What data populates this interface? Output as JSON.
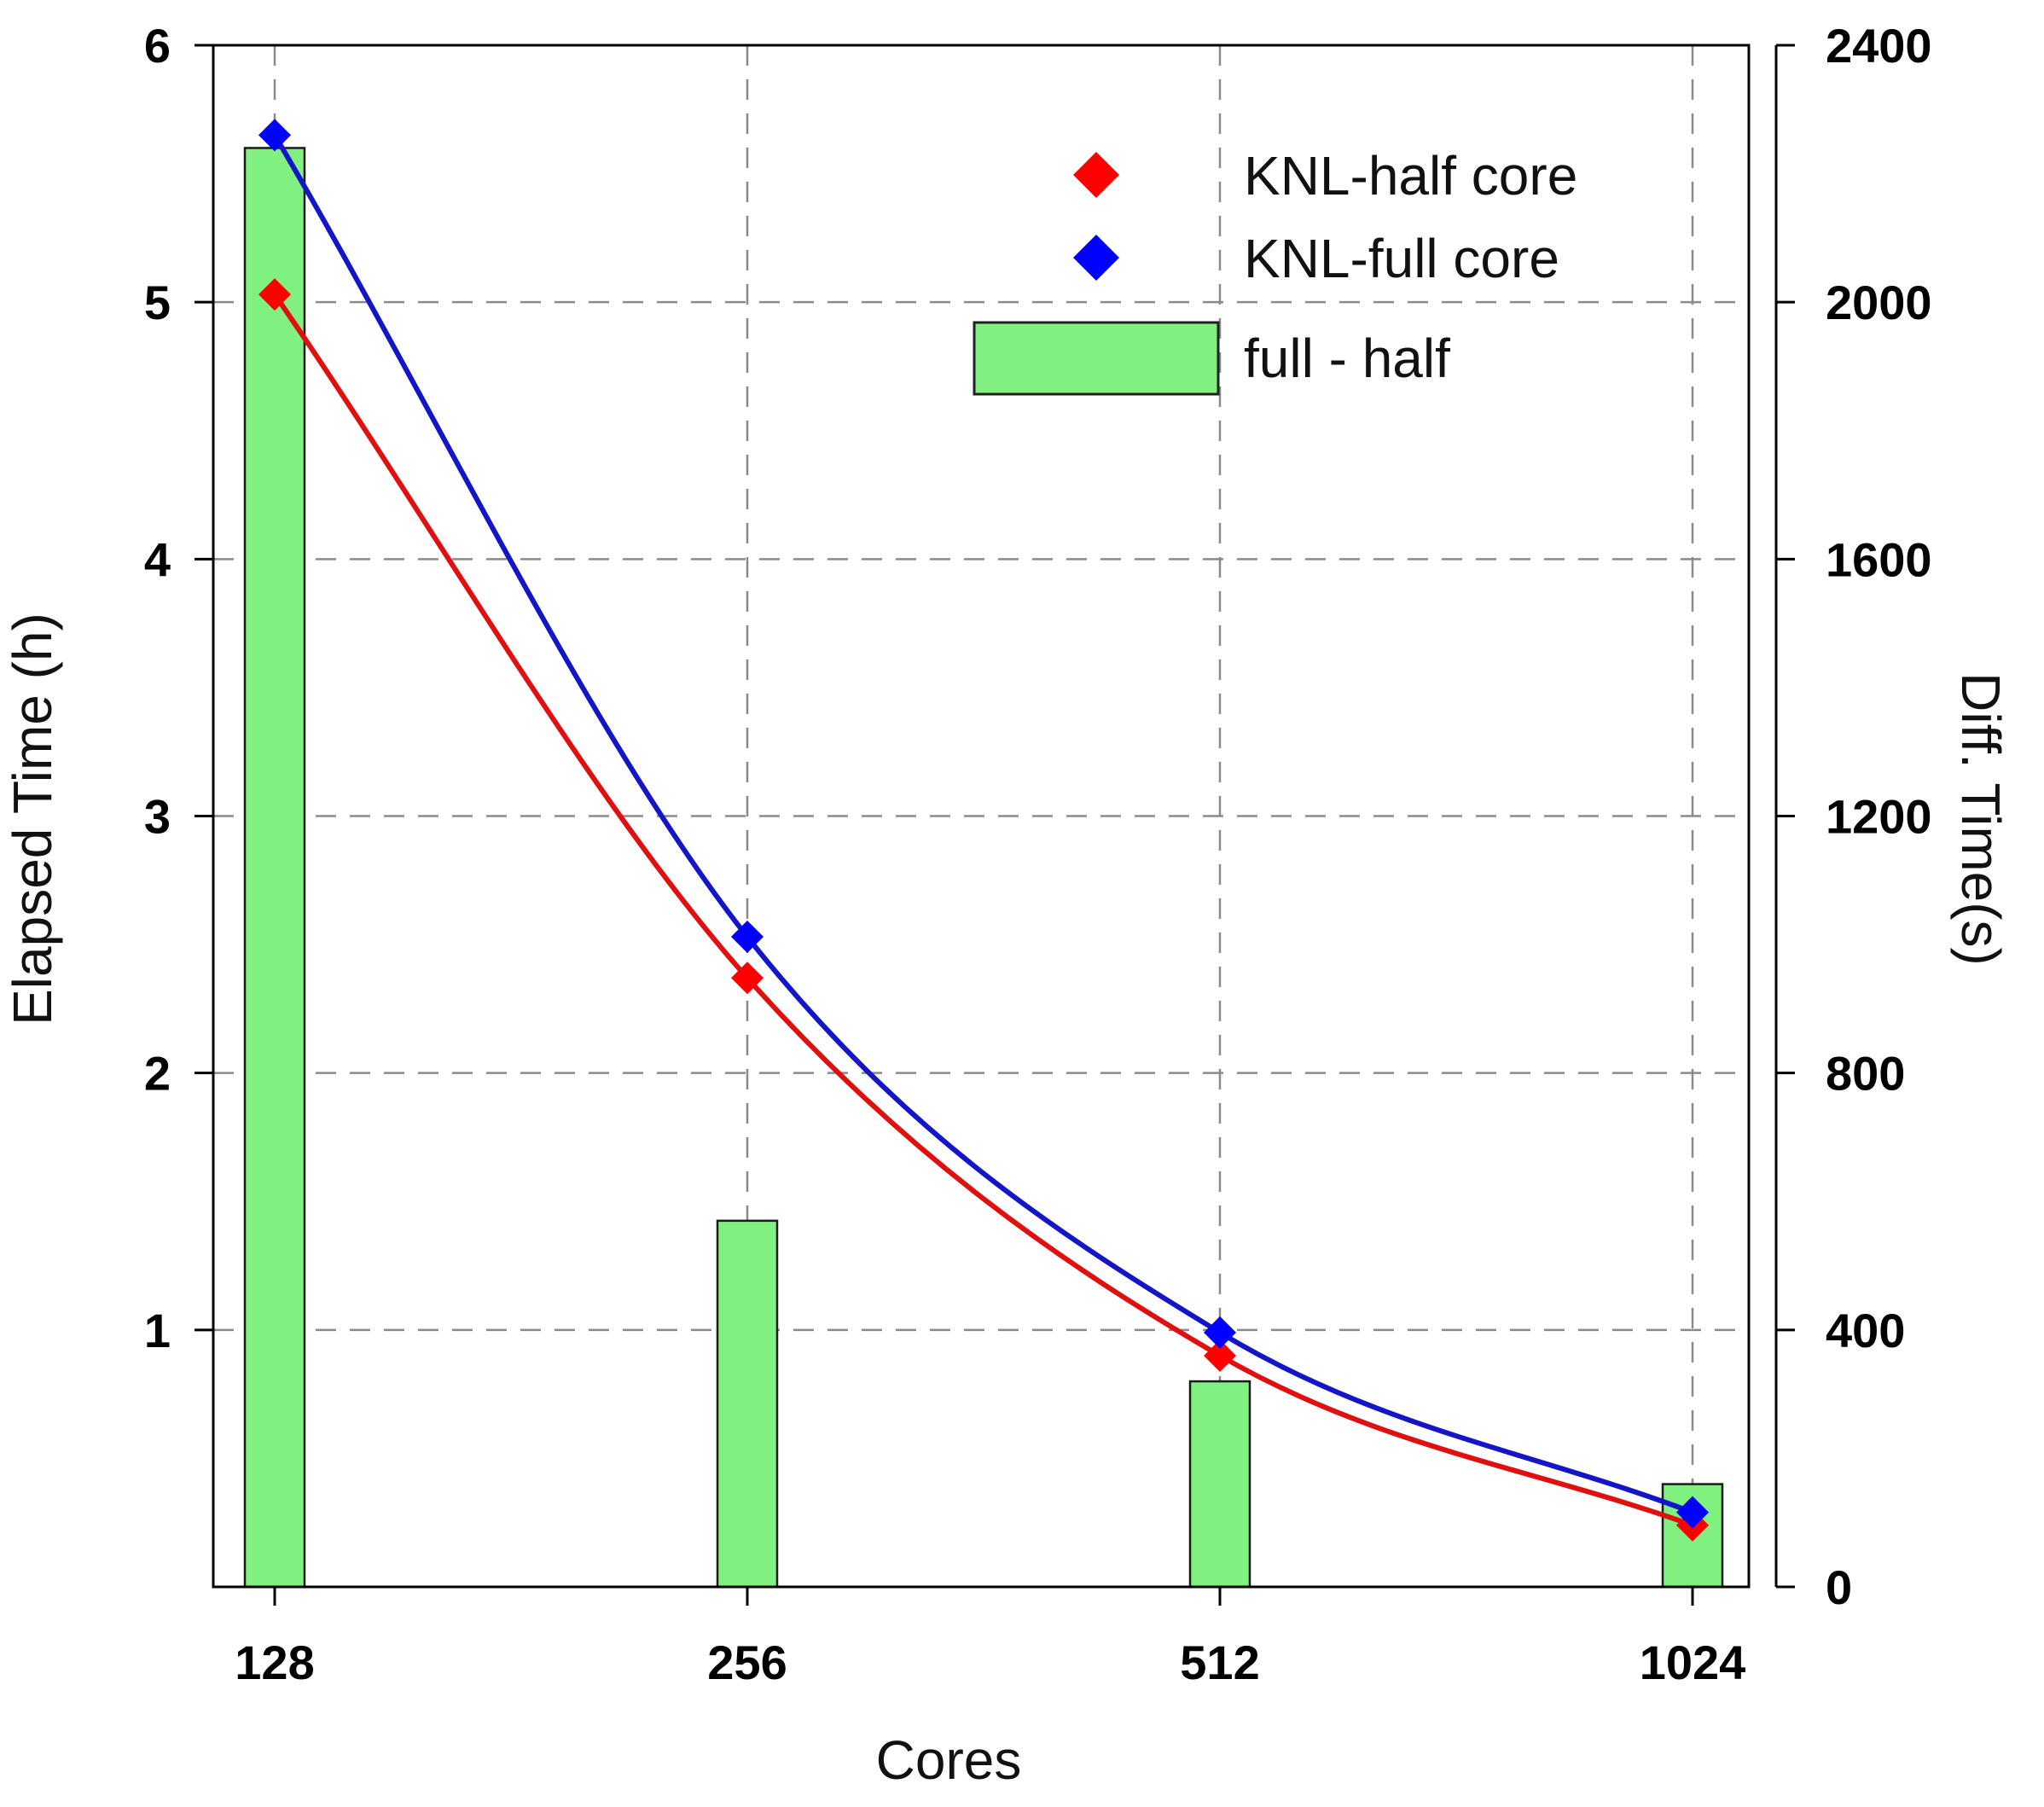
{
  "chart_data": {
    "type": "bar+line",
    "title": "",
    "xlabel": "Cores",
    "ylabel_left": "Elapsed Time (h)",
    "ylabel_right": "Diff. Time(s)",
    "x_ticks": [
      "128",
      "256",
      "512",
      "1024"
    ],
    "x_scale": "log2",
    "ylim_left": [
      0,
      6
    ],
    "yticks_left": [
      1,
      2,
      3,
      4,
      5,
      6
    ],
    "ylim_right": [
      0,
      2400
    ],
    "yticks_right": [
      0,
      400,
      800,
      1200,
      1600,
      2000,
      2400
    ],
    "grid": "dashed",
    "legend_position": "top-right",
    "series": [
      {
        "name": "KNL-half core",
        "kind": "line+markers",
        "axis": "left",
        "color": "#ff0000",
        "line_color": "#e01010",
        "x": [
          128,
          256,
          512,
          1024
        ],
        "values": [
          5.03,
          2.37,
          0.9,
          0.24
        ]
      },
      {
        "name": "KNL-full core",
        "kind": "line+markers",
        "axis": "left",
        "color": "#0000ff",
        "line_color": "#1515c8",
        "x": [
          128,
          256,
          512,
          1024
        ],
        "values": [
          5.65,
          2.53,
          0.99,
          0.29
        ]
      },
      {
        "name": "full - half",
        "kind": "bar",
        "axis": "right",
        "color": "#80f080",
        "x": [
          128,
          256,
          512,
          1024
        ],
        "values": [
          2240,
          570,
          320,
          160
        ]
      }
    ]
  }
}
